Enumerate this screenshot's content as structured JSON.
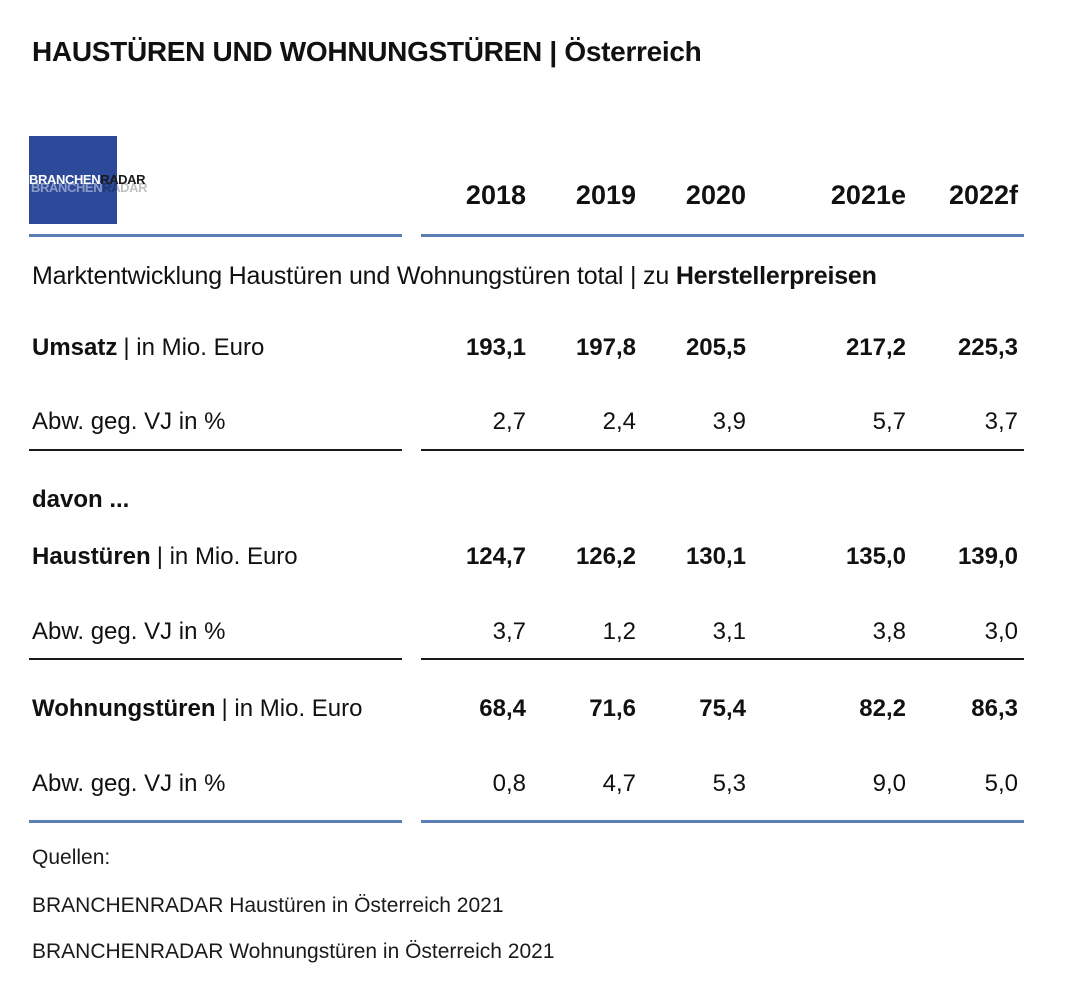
{
  "header": {
    "title_main": "HAUSTÜREN UND WOHNUNGSTÜREN",
    "title_sep": "|",
    "title_sub": "Österreich"
  },
  "logo": {
    "part1": "BRANCHEN",
    "part2": "RADAR",
    "color": "#2d4a9a"
  },
  "section": {
    "title_plain": "Marktentwicklung Haustüren und Wohnungstüren total | zu ",
    "title_bold": "Herstellerpreisen"
  },
  "intermediate_label": "davon ...",
  "chart_data": {
    "type": "table",
    "columns": [
      "2018",
      "2019",
      "2020",
      "2021e",
      "2022f"
    ],
    "rows": [
      {
        "label_bold": "Umsatz",
        "label_unit": "| in Mio. Euro",
        "values": [
          "193,1",
          "197,8",
          "205,5",
          "217,2",
          "225,3"
        ],
        "bold": true
      },
      {
        "label_plain": "Abw. geg. VJ in %",
        "values": [
          "2,7",
          "2,4",
          "3,9",
          "5,7",
          "3,7"
        ],
        "bold": false
      },
      {
        "label_bold": "Haustüren",
        "label_unit": "| in Mio. Euro",
        "values": [
          "124,7",
          "126,2",
          "130,1",
          "135,0",
          "139,0"
        ],
        "bold": true
      },
      {
        "label_plain": "Abw. geg. VJ in %",
        "values": [
          "3,7",
          "1,2",
          "3,1",
          "3,8",
          "3,0"
        ],
        "bold": false
      },
      {
        "label_bold": "Wohnungstüren",
        "label_unit": "| in Mio. Euro",
        "values": [
          "68,4",
          "71,6",
          "75,4",
          "82,2",
          "86,3"
        ],
        "bold": true
      },
      {
        "label_plain": "Abw. geg. VJ in %",
        "values": [
          "0,8",
          "4,7",
          "5,3",
          "9,0",
          "5,0"
        ],
        "bold": false
      }
    ]
  },
  "sources": {
    "heading": "Quellen:",
    "items": [
      "BRANCHENRADAR Haustüren in Österreich 2021",
      "BRANCHENRADAR Wohnungstüren in Österreich 2021"
    ]
  },
  "colors": {
    "rule_blue": "#5b7fb5",
    "text": "#111111"
  }
}
